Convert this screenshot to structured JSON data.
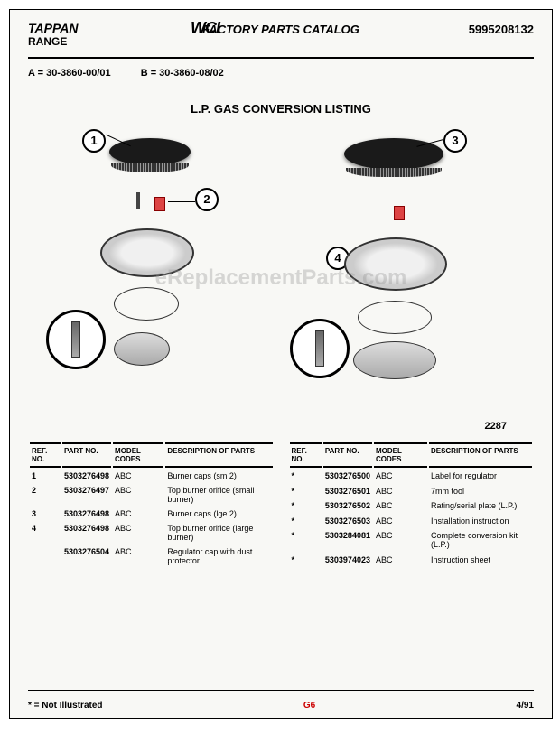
{
  "header": {
    "brand": "TAPPAN",
    "product": "RANGE",
    "wci": "WCI",
    "catalog_title": "FACTORY PARTS CATALOG",
    "catalog_number": "5995208132"
  },
  "models": {
    "a_label": "A = 30-3860-00/01",
    "b_label": "B = 30-3860-08/02"
  },
  "section_title": "L.P. GAS CONVERSION LISTING",
  "callouts": {
    "c1": "1",
    "c2": "2",
    "c3": "3",
    "c4": "4"
  },
  "diagram_ref": "2287",
  "table_headers": {
    "ref": "REF.\nNO.",
    "part": "PART\nNO.",
    "model": "MODEL\nCODES",
    "desc": "DESCRIPTION\nOF PARTS"
  },
  "left_rows": [
    {
      "ref": "1",
      "part": "5303276498",
      "model": "ABC",
      "desc": "Burner caps (sm 2)"
    },
    {
      "ref": "2",
      "part": "5303276497",
      "model": "ABC",
      "desc": "Top burner orifice (small burner)"
    },
    {
      "ref": "3",
      "part": "5303276498",
      "model": "ABC",
      "desc": "Burner caps (lge 2)"
    },
    {
      "ref": "4",
      "part": "5303276498",
      "model": "ABC",
      "desc": "Top burner orifice (large burner)"
    },
    {
      "ref": "",
      "part": "5303276504",
      "model": "ABC",
      "desc": "Regulator cap with dust protector"
    }
  ],
  "right_rows": [
    {
      "ref": "*",
      "part": "5303276500",
      "model": "ABC",
      "desc": "Label for regulator"
    },
    {
      "ref": "*",
      "part": "5303276501",
      "model": "ABC",
      "desc": "7mm tool"
    },
    {
      "ref": "*",
      "part": "5303276502",
      "model": "ABC",
      "desc": "Rating/serial plate (L.P.)"
    },
    {
      "ref": "*",
      "part": "5303276503",
      "model": "ABC",
      "desc": "Installation instruction"
    },
    {
      "ref": "*",
      "part": "5303284081",
      "model": "ABC",
      "desc": "Complete conversion kit (L.P.)"
    },
    {
      "ref": "*",
      "part": "5303974023",
      "model": "ABC",
      "desc": "Instruction sheet"
    }
  ],
  "footer": {
    "note": "* = Not Illustrated",
    "page": "G6",
    "date": "4/91"
  },
  "watermark": "eReplacementParts.com"
}
